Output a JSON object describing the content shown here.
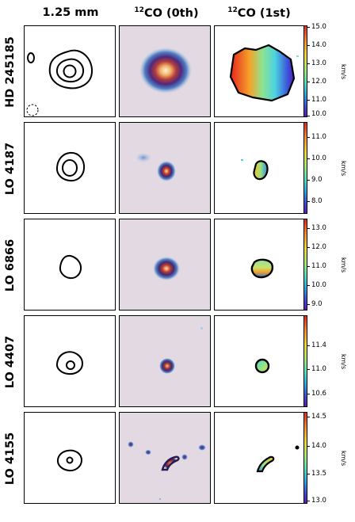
{
  "columns": {
    "c1": "1.25 mm",
    "c2_sup": "12",
    "c2_text": "CO (0th)",
    "c3_sup": "12",
    "c3_text": "CO (1st)"
  },
  "rows": [
    {
      "name": "HD 245185",
      "unit": "km/s",
      "ticks": [
        "15.0",
        "14.0",
        "13.0",
        "12.0",
        "11.0",
        "10.0"
      ]
    },
    {
      "name": "LO 4187",
      "unit": "km/s",
      "ticks": [
        "11.0",
        "10.0",
        "9.0",
        "8.0"
      ]
    },
    {
      "name": "LO 6866",
      "unit": "km/s",
      "ticks": [
        "13.0",
        "12.0",
        "11.0",
        "10.0",
        "9.0"
      ]
    },
    {
      "name": "LO 4407",
      "unit": "km/s",
      "ticks": [
        "11.4",
        "11.0",
        "10.6"
      ]
    },
    {
      "name": "LO 4155",
      "unit": "km/s",
      "ticks": [
        "14.5",
        "14.0",
        "13.5",
        "13.0"
      ]
    }
  ],
  "colors": {
    "contour": "#000000",
    "map_bg": "#e2d9e2",
    "cmap_top": "#e8231f",
    "cmap_bottom": "#5b17c1"
  }
}
